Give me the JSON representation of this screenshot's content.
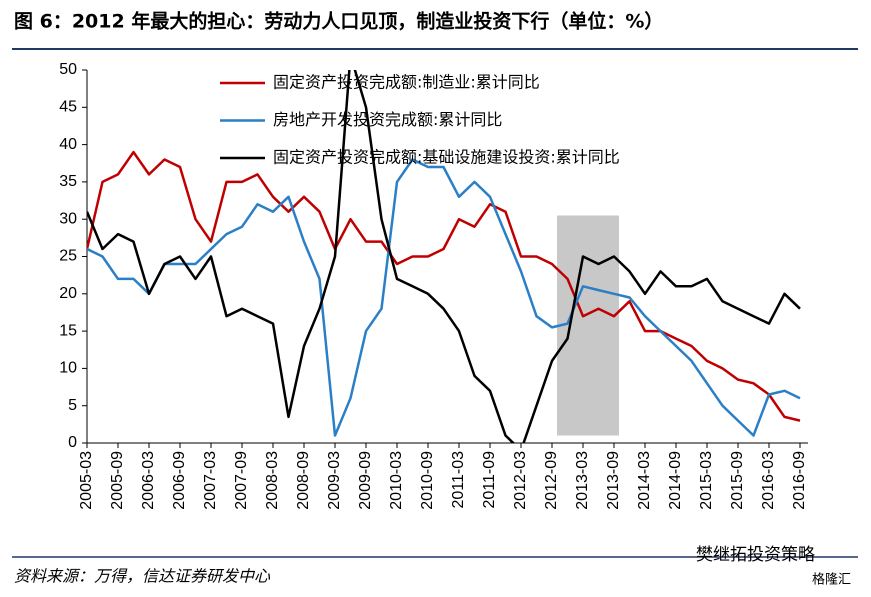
{
  "chart_data": {
    "type": "line",
    "title": "图 6：2012 年最大的担心：劳动力人口见顶，制造业投资下行（单位：%）",
    "source": "资料来源：万得，信达证券研发中心",
    "watermark": "樊继拓投资策略",
    "watermark2": "格隆汇",
    "categories": [
      "2005-03",
      null,
      "2005-09",
      null,
      "2006-03",
      null,
      "2006-09",
      null,
      "2007-03",
      null,
      "2007-09",
      null,
      "2008-03",
      null,
      "2008-09",
      null,
      "2009-03",
      null,
      "2009-09",
      null,
      "2010-03",
      null,
      "2010-09",
      null,
      "2011-03",
      null,
      "2011-09",
      null,
      "2012-03",
      null,
      "2012-09",
      null,
      "2013-03",
      null,
      "2013-09",
      null,
      "2014-03",
      null,
      "2014-09",
      null,
      "2015-03",
      null,
      "2015-09",
      null,
      "2016-03",
      null,
      "2016-09"
    ],
    "series": [
      {
        "name": "固定资产投资完成额:制造业:累计同比",
        "color": "#c00000",
        "values": [
          26,
          35,
          36,
          39,
          36,
          38,
          37,
          30,
          27,
          35,
          35,
          36,
          33,
          31,
          33,
          31,
          26,
          30,
          27,
          27,
          24,
          25,
          25,
          26,
          30,
          29,
          32,
          31,
          25,
          25,
          24,
          22,
          17,
          18,
          17,
          19,
          15,
          15,
          14,
          13,
          11,
          10,
          8.5,
          8,
          6.5,
          3.5,
          3
        ]
      },
      {
        "name": "房地产开发投资完成额:累计同比",
        "color": "#2a7fc6",
        "values": [
          26,
          25,
          22,
          22,
          20,
          24,
          24,
          24,
          26,
          28,
          29,
          32,
          31,
          33,
          27,
          22,
          1,
          6,
          15,
          18,
          35,
          38,
          37,
          37,
          33,
          35,
          33,
          28,
          23,
          17,
          15.5,
          16,
          21,
          20.5,
          20,
          19.5,
          17,
          15,
          13,
          11,
          8,
          5,
          3,
          1,
          6.5,
          7,
          6
        ]
      },
      {
        "name": "固定资产投资完成额:基础设施建设投资:累计同比",
        "color": "#000000",
        "values": [
          31,
          26,
          28,
          27,
          20,
          24,
          25,
          22,
          25,
          17,
          18,
          17,
          16,
          3.5,
          13,
          18,
          25,
          52,
          45,
          30,
          22,
          21,
          20,
          18,
          15,
          9,
          7,
          1,
          -1,
          5,
          11,
          14,
          25,
          24,
          25,
          23,
          20,
          23,
          21,
          21,
          22,
          19,
          18,
          17,
          16,
          20,
          18
        ]
      }
    ],
    "highlight": {
      "from": "2012-09",
      "to": "2013-09",
      "ylim": [
        1,
        30.5
      ],
      "color": "#c8c8c8"
    },
    "ylim": [
      0,
      50
    ],
    "yticks": [
      0,
      5,
      10,
      15,
      20,
      25,
      30,
      35,
      40,
      45,
      50
    ],
    "legend": "top-left",
    "grid": false
  }
}
